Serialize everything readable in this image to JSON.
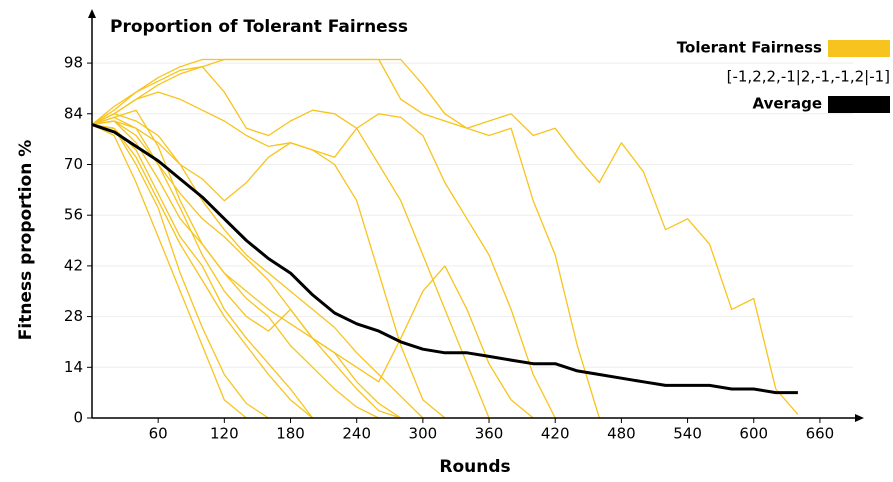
{
  "chart_data": {
    "type": "line",
    "title": "Proportion of Tolerant Fairness",
    "x_label": "Rounds",
    "y_label": "Fitness proportion %",
    "xlim": [
      0,
      690
    ],
    "ylim": [
      0,
      111
    ],
    "xticks": [
      60,
      120,
      180,
      240,
      300,
      360,
      420,
      480,
      540,
      600,
      660
    ],
    "yticks": [
      0,
      14,
      28,
      42,
      56,
      70,
      84,
      98
    ],
    "grid": true,
    "legend": "top-right",
    "legend_note": "[-1,2,2,-1|2,-1,-1,2|-1]",
    "series": [
      {
        "name": "Tolerant Fairness",
        "color": "#f7c41f",
        "runs": [
          {
            "x": [
              0,
              20,
              40,
              60,
              80,
              100,
              120,
              140,
              160,
              180,
              200,
              220,
              240,
              260,
              280,
              300,
              320,
              340,
              360,
              380,
              400,
              420,
              440,
              460,
              480,
              500,
              520,
              540,
              560,
              580,
              600,
              620,
              640
            ],
            "values": [
              81,
              84,
              88,
              92,
              95,
              97,
              99,
              99,
              99,
              99,
              99,
              99,
              99,
              99,
              99,
              92,
              84,
              80,
              82,
              84,
              78,
              80,
              72,
              65,
              76,
              68,
              52,
              55,
              48,
              30,
              33,
              8,
              1
            ]
          },
          {
            "x": [
              0,
              20,
              40,
              60,
              80,
              100,
              120,
              140,
              160,
              180,
              200,
              220,
              240,
              260,
              280,
              300,
              320,
              340,
              360,
              380,
              400,
              420,
              440,
              460
            ],
            "values": [
              81,
              86,
              90,
              94,
              97,
              99,
              99,
              99,
              99,
              99,
              99,
              99,
              99,
              99,
              88,
              84,
              82,
              80,
              78,
              80,
              60,
              45,
              20,
              0
            ]
          },
          {
            "x": [
              0,
              20,
              40,
              60,
              80,
              100,
              120,
              140,
              160,
              180,
              200,
              220,
              240,
              260,
              280,
              300,
              320,
              340,
              360,
              380,
              400,
              420
            ],
            "values": [
              81,
              85,
              90,
              93,
              96,
              97,
              90,
              80,
              78,
              82,
              85,
              84,
              80,
              84,
              83,
              78,
              65,
              55,
              45,
              30,
              12,
              0
            ]
          },
          {
            "x": [
              0,
              20,
              40,
              60,
              80,
              100,
              120,
              140,
              160,
              180,
              200,
              220,
              240,
              260,
              280,
              300,
              320
            ],
            "values": [
              81,
              82,
              80,
              76,
              70,
              66,
              60,
              65,
              72,
              76,
              74,
              70,
              60,
              40,
              20,
              5,
              0
            ]
          },
          {
            "x": [
              0,
              20,
              40,
              60,
              80,
              100,
              120,
              140
            ],
            "values": [
              81,
              78,
              65,
              50,
              35,
              20,
              5,
              0
            ]
          },
          {
            "x": [
              0,
              20,
              40,
              60,
              80,
              100,
              120,
              140,
              160,
              180,
              200
            ],
            "values": [
              81,
              80,
              72,
              60,
              48,
              38,
              28,
              20,
              12,
              5,
              0
            ]
          },
          {
            "x": [
              0,
              20,
              40,
              60,
              80,
              100,
              120,
              140,
              160,
              180,
              200,
              220,
              240,
              260
            ],
            "values": [
              81,
              82,
              76,
              66,
              55,
              48,
              40,
              33,
              28,
              20,
              14,
              8,
              3,
              0
            ]
          },
          {
            "x": [
              0,
              20,
              40,
              60,
              80,
              100,
              120,
              140,
              160,
              180,
              200,
              220,
              240,
              260,
              280
            ],
            "values": [
              81,
              83,
              80,
              70,
              62,
              55,
              50,
              44,
              38,
              30,
              22,
              15,
              8,
              2,
              0
            ]
          },
          {
            "x": [
              0,
              20,
              40,
              60,
              80,
              100,
              120,
              140,
              160,
              180,
              200
            ],
            "values": [
              81,
              80,
              74,
              62,
              50,
              42,
              30,
              22,
              15,
              8,
              0
            ]
          },
          {
            "x": [
              0,
              20,
              40,
              60,
              80,
              100,
              120,
              140,
              160,
              180,
              200,
              220,
              240,
              260,
              280,
              300
            ],
            "values": [
              81,
              84,
              82,
              78,
              70,
              60,
              52,
              45,
              40,
              35,
              30,
              25,
              18,
              12,
              6,
              0
            ]
          },
          {
            "x": [
              0,
              20,
              40,
              60,
              80,
              100,
              120,
              140,
              160,
              180,
              200,
              220,
              240,
              260,
              280
            ],
            "values": [
              81,
              82,
              78,
              70,
              58,
              45,
              35,
              28,
              24,
              30,
              22,
              18,
              10,
              4,
              0
            ]
          },
          {
            "x": [
              0,
              20,
              40,
              60,
              80,
              100,
              120,
              140,
              160
            ],
            "values": [
              81,
              80,
              70,
              58,
              40,
              25,
              12,
              4,
              0
            ]
          },
          {
            "x": [
              0,
              20,
              40,
              60,
              80,
              100,
              120,
              140,
              160,
              180,
              200,
              220,
              240,
              260,
              280,
              300,
              320,
              340,
              360,
              380,
              400
            ],
            "values": [
              81,
              83,
              85,
              75,
              60,
              48,
              40,
              35,
              30,
              26,
              22,
              18,
              14,
              10,
              22,
              35,
              42,
              30,
              15,
              5,
              0
            ]
          },
          {
            "x": [
              0,
              20,
              40,
              60,
              80,
              100,
              120,
              140,
              160,
              180,
              200,
              220,
              240,
              260,
              280,
              300,
              320,
              340,
              360
            ],
            "values": [
              81,
              84,
              88,
              90,
              88,
              85,
              82,
              78,
              75,
              76,
              74,
              72,
              80,
              70,
              60,
              45,
              30,
              15,
              0
            ]
          }
        ]
      },
      {
        "name": "Average",
        "color": "#000000",
        "x": [
          0,
          20,
          40,
          60,
          80,
          100,
          120,
          140,
          160,
          180,
          200,
          220,
          240,
          260,
          280,
          300,
          320,
          340,
          360,
          380,
          400,
          420,
          440,
          460,
          480,
          500,
          520,
          540,
          560,
          580,
          600,
          620,
          640
        ],
        "values": [
          81,
          79,
          75,
          71,
          66,
          61,
          55,
          49,
          44,
          40,
          34,
          29,
          26,
          24,
          21,
          19,
          18,
          18,
          17,
          16,
          15,
          15,
          13,
          12,
          11,
          10,
          9,
          9,
          9,
          8,
          8,
          7,
          7
        ]
      }
    ]
  }
}
